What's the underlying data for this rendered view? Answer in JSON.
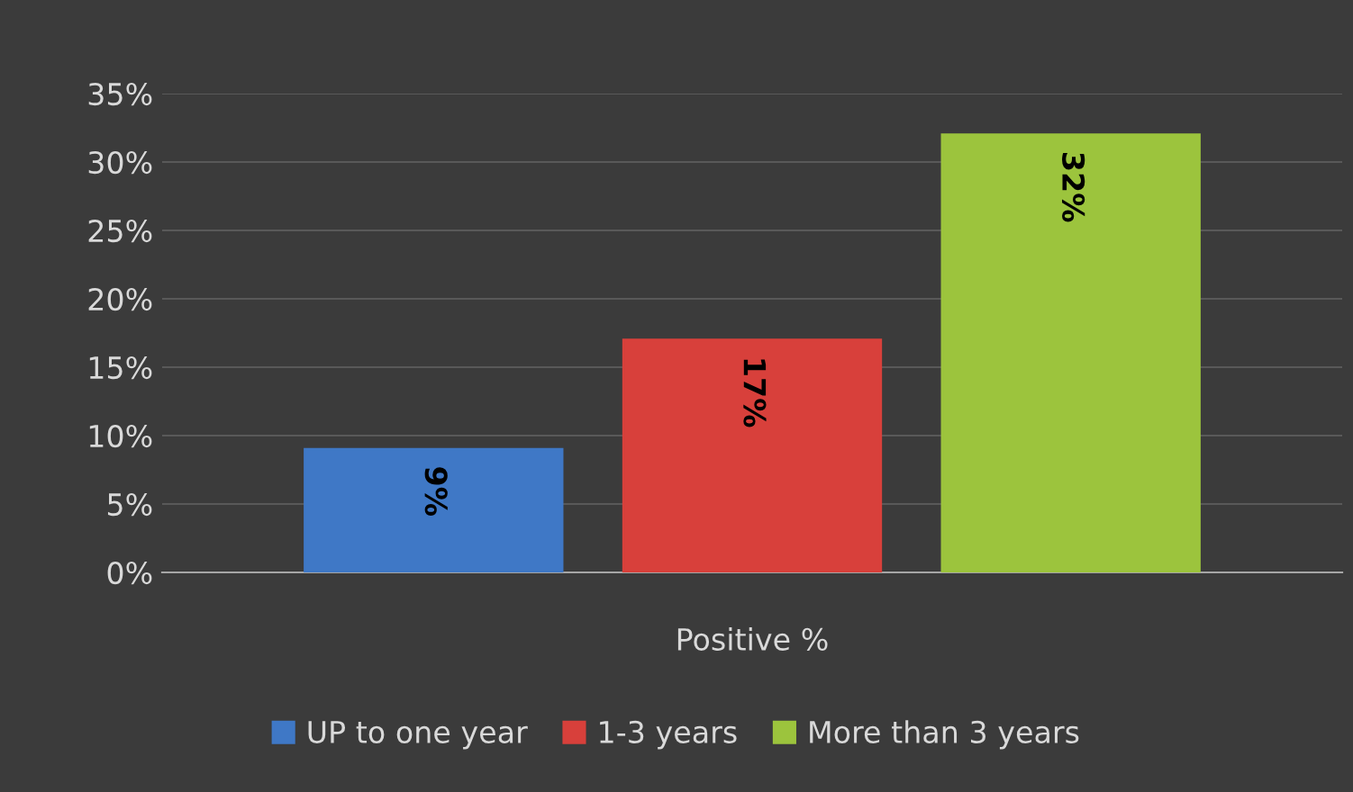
{
  "chart_data": {
    "type": "bar",
    "categories": [
      "Positive %"
    ],
    "series": [
      {
        "name": "UP to one year",
        "color": "#3f78c6",
        "values": [
          9
        ],
        "value_labels": [
          "9%"
        ]
      },
      {
        "name": "1-3 years",
        "color": "#d8403b",
        "values": [
          17
        ],
        "value_labels": [
          "17%"
        ]
      },
      {
        "name": "More than 3 years",
        "color": "#9cc43d",
        "values": [
          32
        ],
        "value_labels": [
          "32%"
        ]
      }
    ],
    "ylim": [
      0,
      35
    ],
    "yticks": [
      {
        "value": 0,
        "label": "0%"
      },
      {
        "value": 5,
        "label": "5%"
      },
      {
        "value": 10,
        "label": "10%"
      },
      {
        "value": 15,
        "label": "15%"
      },
      {
        "value": 20,
        "label": "20%"
      },
      {
        "value": 25,
        "label": "25%"
      },
      {
        "value": 30,
        "label": "30%"
      },
      {
        "value": 35,
        "label": "35%"
      }
    ],
    "grid": "y",
    "legend": "bottom"
  }
}
